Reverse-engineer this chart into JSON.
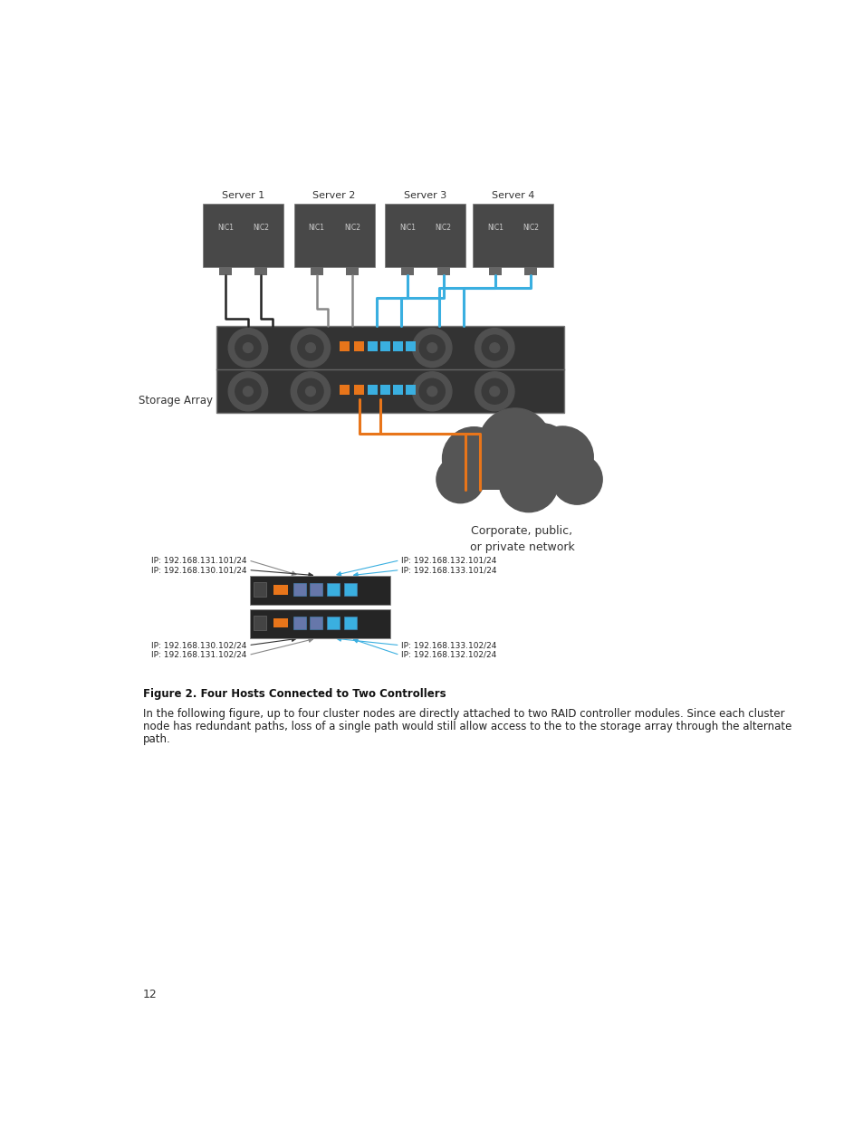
{
  "bg_color": "#ffffff",
  "page_number": "12",
  "figure_caption": "Figure 2. Four Hosts Connected to Two Controllers",
  "body_text_lines": [
    "In the following figure, up to four cluster nodes are directly attached to two RAID controller modules. Since each cluster",
    "node has redundant paths, loss of a single path would still allow access to the to the storage array through the alternate",
    "path."
  ],
  "server_labels": [
    "Server 1",
    "Server 2",
    "Server 3",
    "Server 4"
  ],
  "storage_label": "Storage Array",
  "cloud_label": "Corporate, public,\nor private network",
  "ip_labels_top_left": [
    "IP: 192.168.131.101/24",
    "IP: 192.168.130.101/24"
  ],
  "ip_labels_top_right": [
    "IP: 192.168.132.101/24",
    "IP: 192.168.133.101/24"
  ],
  "ip_labels_bottom_left": [
    "IP: 192.168.130.102/24",
    "IP: 192.168.131.102/24"
  ],
  "ip_labels_bottom_right": [
    "IP: 192.168.133.102/24",
    "IP: 192.168.132.102/24"
  ],
  "server_color": "#484848",
  "storage_color": "#333333",
  "fan_outer_color": "#505050",
  "fan_inner_color": "#3a3a3a",
  "orange_color": "#e8751a",
  "cyan_color": "#3aafe0",
  "gray_cable": "#888888",
  "black_cable": "#222222",
  "cloud_color": "#555555",
  "ctrl_bg": "#2a2a2a"
}
